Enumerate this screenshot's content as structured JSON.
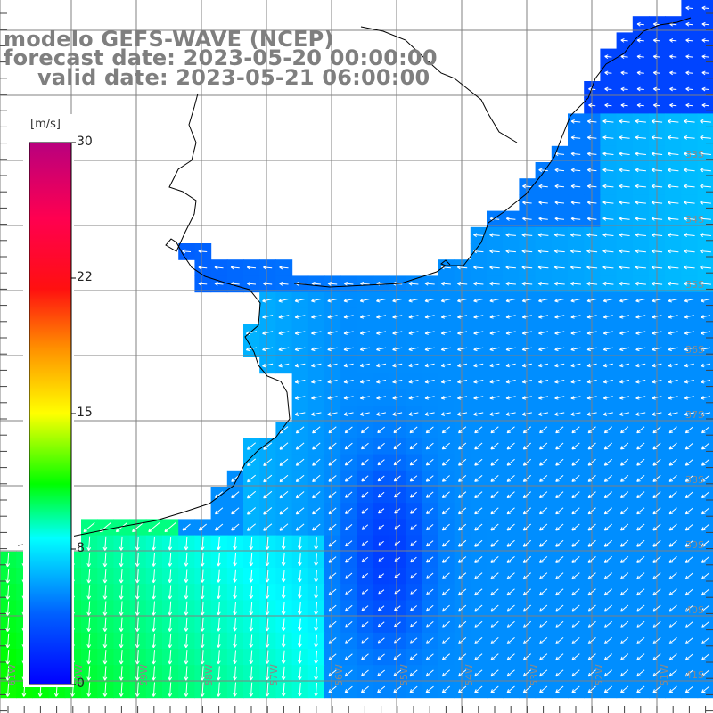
{
  "header": {
    "line1": "modelo GEFS-WAVE (NCEP)",
    "line2": "forecast date: 2023-05-20 00:00:00",
    "line3": "valid date: 2023-05-21 06:00:00"
  },
  "colorbar": {
    "unit": "[m/s]",
    "ticks": [
      "30",
      "22",
      "15",
      "8",
      "0"
    ],
    "tick_values": [
      30,
      22,
      15,
      8,
      0
    ],
    "colors": [
      "#0000ff",
      "#00a0ff",
      "#00ffff",
      "#00ff00",
      "#ffff00",
      "#ff8000",
      "#ff0000",
      "#c00080"
    ]
  },
  "map": {
    "lat_labels": [
      "33S",
      "34S",
      "35S",
      "36S",
      "37S",
      "38S",
      "39S",
      "40S",
      "41S"
    ],
    "lon_labels": [
      "61W",
      "60W",
      "59W",
      "58W",
      "57W",
      "56W",
      "55W",
      "54W",
      "53W",
      "52W",
      "51W"
    ],
    "grid": true,
    "field": "wind speed (m/s) with direction arrows"
  }
}
